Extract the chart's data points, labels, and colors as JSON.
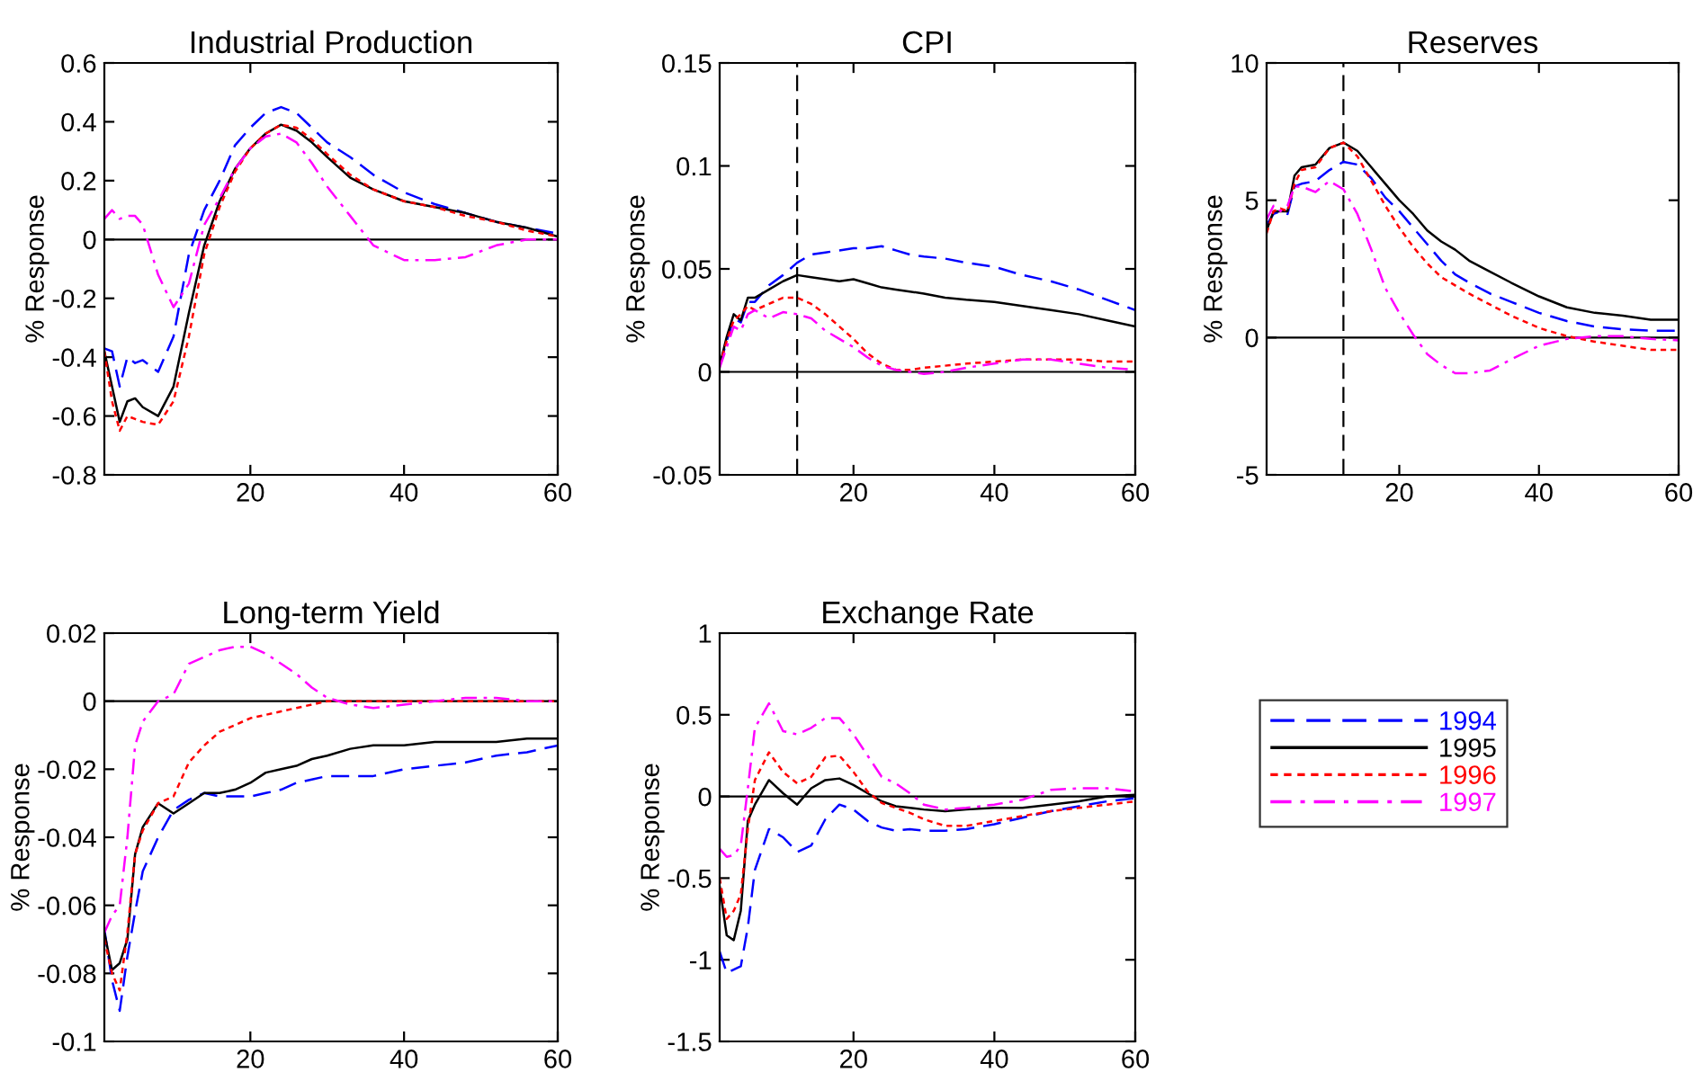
{
  "chart_data": [
    {
      "type": "line",
      "title": "Industrial Production",
      "ylabel": "% Response",
      "x": [
        1,
        2,
        3,
        4,
        5,
        6,
        8,
        10,
        12,
        14,
        16,
        18,
        20,
        22,
        24,
        26,
        28,
        30,
        33,
        36,
        40,
        44,
        48,
        52,
        56,
        60
      ],
      "xlim": [
        1,
        60
      ],
      "xticks": [
        20,
        40,
        60
      ],
      "ylim": [
        -0.8,
        0.6
      ],
      "yticks": [
        -0.8,
        -0.6,
        -0.4,
        -0.2,
        0,
        0.2,
        0.4,
        0.6
      ],
      "grid": false,
      "legend": false,
      "ref_lines": [
        {
          "axis": "y",
          "value": 0,
          "color": "#000000",
          "line_style": "solid"
        }
      ],
      "series": [
        {
          "color": "#0000ff",
          "line_style": "dashed",
          "values": [
            -0.37,
            -0.38,
            -0.5,
            -0.4,
            -0.42,
            -0.41,
            -0.45,
            -0.33,
            -0.05,
            0.1,
            0.2,
            0.32,
            0.38,
            0.43,
            0.45,
            0.43,
            0.38,
            0.33,
            0.28,
            0.22,
            0.16,
            0.12,
            0.09,
            0.06,
            0.04,
            0.02
          ]
        },
        {
          "color": "#000000",
          "line_style": "solid",
          "values": [
            -0.38,
            -0.5,
            -0.62,
            -0.55,
            -0.54,
            -0.57,
            -0.6,
            -0.5,
            -0.25,
            -0.02,
            0.13,
            0.24,
            0.31,
            0.36,
            0.39,
            0.37,
            0.33,
            0.28,
            0.21,
            0.17,
            0.13,
            0.11,
            0.09,
            0.06,
            0.04,
            0.01
          ]
        },
        {
          "color": "#ff0000",
          "line_style": "dotted",
          "values": [
            -0.38,
            -0.55,
            -0.65,
            -0.6,
            -0.61,
            -0.62,
            -0.63,
            -0.55,
            -0.33,
            -0.05,
            0.11,
            0.23,
            0.31,
            0.36,
            0.39,
            0.38,
            0.34,
            0.29,
            0.22,
            0.17,
            0.13,
            0.11,
            0.08,
            0.06,
            0.03,
            0.01
          ]
        },
        {
          "color": "#ff00ff",
          "line_style": "dashdot",
          "values": [
            0.07,
            0.1,
            0.07,
            0.08,
            0.08,
            0.05,
            -0.12,
            -0.23,
            -0.15,
            0.05,
            0.14,
            0.24,
            0.31,
            0.35,
            0.36,
            0.33,
            0.26,
            0.18,
            0.08,
            -0.02,
            -0.07,
            -0.07,
            -0.06,
            -0.02,
            0,
            0
          ]
        }
      ]
    },
    {
      "type": "line",
      "title": "CPI",
      "ylabel": "% Response",
      "x": [
        1,
        2,
        3,
        4,
        5,
        6,
        8,
        10,
        12,
        14,
        16,
        18,
        20,
        22,
        24,
        26,
        28,
        30,
        33,
        36,
        40,
        44,
        48,
        52,
        56,
        60
      ],
      "xlim": [
        1,
        60
      ],
      "xticks": [
        20,
        40,
        60
      ],
      "ylim": [
        -0.05,
        0.15
      ],
      "yticks": [
        -0.05,
        0,
        0.05,
        0.1,
        0.15
      ],
      "grid": false,
      "legend": false,
      "ref_lines": [
        {
          "axis": "y",
          "value": 0,
          "color": "#000000",
          "line_style": "solid"
        },
        {
          "axis": "x",
          "value": 12,
          "color": "#000000",
          "line_style": "dashed"
        }
      ],
      "series": [
        {
          "color": "#0000ff",
          "line_style": "dashed",
          "values": [
            0.003,
            0.015,
            0.026,
            0.024,
            0.034,
            0.034,
            0.042,
            0.047,
            0.053,
            0.057,
            0.058,
            0.059,
            0.06,
            0.06,
            0.061,
            0.059,
            0.057,
            0.056,
            0.055,
            0.053,
            0.051,
            0.047,
            0.044,
            0.04,
            0.035,
            0.03
          ]
        },
        {
          "color": "#000000",
          "line_style": "solid",
          "values": [
            0.003,
            0.017,
            0.028,
            0.025,
            0.036,
            0.036,
            0.04,
            0.044,
            0.047,
            0.046,
            0.045,
            0.044,
            0.045,
            0.043,
            0.041,
            0.04,
            0.039,
            0.038,
            0.036,
            0.035,
            0.034,
            0.032,
            0.03,
            0.028,
            0.025,
            0.022
          ]
        },
        {
          "color": "#ff0000",
          "line_style": "dotted",
          "values": [
            0.003,
            0.015,
            0.025,
            0.028,
            0.032,
            0.03,
            0.033,
            0.036,
            0.036,
            0.033,
            0.028,
            0.022,
            0.016,
            0.009,
            0.004,
            0.001,
            0.001,
            0.002,
            0.003,
            0.004,
            0.005,
            0.006,
            0.006,
            0.006,
            0.005,
            0.005
          ]
        },
        {
          "color": "#ff00ff",
          "line_style": "dashdot",
          "values": [
            0.002,
            0.012,
            0.022,
            0.02,
            0.028,
            0.03,
            0.026,
            0.029,
            0.028,
            0.026,
            0.02,
            0.016,
            0.012,
            0.007,
            0.003,
            0.001,
            0,
            -0.001,
            0,
            0.002,
            0.004,
            0.006,
            0.006,
            0.004,
            0.002,
            0.001
          ]
        }
      ]
    },
    {
      "type": "line",
      "title": "Reserves",
      "ylabel": "% Response",
      "x": [
        1,
        2,
        3,
        4,
        5,
        6,
        8,
        10,
        12,
        14,
        16,
        18,
        20,
        22,
        24,
        26,
        28,
        30,
        33,
        36,
        40,
        44,
        48,
        52,
        56,
        60
      ],
      "xlim": [
        1,
        60
      ],
      "xticks": [
        20,
        40,
        60
      ],
      "ylim": [
        -5,
        10
      ],
      "yticks": [
        -5,
        0,
        5,
        10
      ],
      "grid": false,
      "legend": false,
      "ref_lines": [
        {
          "axis": "y",
          "value": 0,
          "color": "#000000",
          "line_style": "solid"
        },
        {
          "axis": "x",
          "value": 12,
          "color": "#000000",
          "line_style": "dashed"
        }
      ],
      "series": [
        {
          "color": "#0000ff",
          "line_style": "dashed",
          "values": [
            4.1,
            4.5,
            4.6,
            4.5,
            5.5,
            5.6,
            5.7,
            6.1,
            6.4,
            6.3,
            5.8,
            5.1,
            4.6,
            4.0,
            3.4,
            2.8,
            2.3,
            2.0,
            1.6,
            1.3,
            0.9,
            0.6,
            0.4,
            0.3,
            0.25,
            0.25
          ]
        },
        {
          "color": "#000000",
          "line_style": "solid",
          "values": [
            3.9,
            4.6,
            4.6,
            4.6,
            5.9,
            6.2,
            6.3,
            6.9,
            7.1,
            6.8,
            6.2,
            5.6,
            5.0,
            4.5,
            3.9,
            3.5,
            3.2,
            2.8,
            2.4,
            2.0,
            1.5,
            1.1,
            0.9,
            0.8,
            0.65,
            0.65
          ]
        },
        {
          "color": "#ff0000",
          "line_style": "dotted",
          "values": [
            3.8,
            4.6,
            4.7,
            4.6,
            5.6,
            6.1,
            6.2,
            6.9,
            7.1,
            6.6,
            5.7,
            4.8,
            4.0,
            3.3,
            2.7,
            2.2,
            1.9,
            1.6,
            1.2,
            0.8,
            0.35,
            0.05,
            -0.15,
            -0.3,
            -0.45,
            -0.45
          ]
        },
        {
          "color": "#ff00ff",
          "line_style": "dashdot",
          "values": [
            4.3,
            4.8,
            4.6,
            4.8,
            5.5,
            5.5,
            5.3,
            5.7,
            5.4,
            4.5,
            3.2,
            1.8,
            0.9,
            0.1,
            -0.6,
            -1.0,
            -1.3,
            -1.3,
            -1.2,
            -0.8,
            -0.3,
            -0.05,
            0.05,
            0.05,
            -0.05,
            -0.1
          ]
        }
      ]
    },
    {
      "type": "line",
      "title": "Long-term Yield",
      "ylabel": "% Response",
      "x": [
        1,
        2,
        3,
        4,
        5,
        6,
        8,
        10,
        12,
        14,
        16,
        18,
        20,
        22,
        24,
        26,
        28,
        30,
        33,
        36,
        40,
        44,
        48,
        52,
        56,
        60
      ],
      "xlim": [
        1,
        60
      ],
      "xticks": [
        20,
        40,
        60
      ],
      "ylim": [
        -0.1,
        0.02
      ],
      "yticks": [
        -0.1,
        -0.08,
        -0.06,
        -0.04,
        -0.02,
        0,
        0.02
      ],
      "grid": false,
      "legend": false,
      "ref_lines": [
        {
          "axis": "y",
          "value": 0,
          "color": "#000000",
          "line_style": "solid"
        }
      ],
      "series": [
        {
          "color": "#0000ff",
          "line_style": "dashed",
          "values": [
            -0.067,
            -0.082,
            -0.091,
            -0.075,
            -0.062,
            -0.05,
            -0.04,
            -0.032,
            -0.029,
            -0.027,
            -0.028,
            -0.028,
            -0.028,
            -0.027,
            -0.026,
            -0.024,
            -0.023,
            -0.022,
            -0.022,
            -0.022,
            -0.02,
            -0.019,
            -0.018,
            -0.016,
            -0.015,
            -0.013
          ]
        },
        {
          "color": "#000000",
          "line_style": "solid",
          "values": [
            -0.068,
            -0.079,
            -0.077,
            -0.07,
            -0.045,
            -0.037,
            -0.03,
            -0.033,
            -0.03,
            -0.027,
            -0.027,
            -0.026,
            -0.024,
            -0.021,
            -0.02,
            -0.019,
            -0.017,
            -0.016,
            -0.014,
            -0.013,
            -0.013,
            -0.012,
            -0.012,
            -0.012,
            -0.011,
            -0.011
          ]
        },
        {
          "color": "#ff0000",
          "line_style": "dotted",
          "values": [
            -0.07,
            -0.08,
            -0.085,
            -0.068,
            -0.045,
            -0.038,
            -0.03,
            -0.028,
            -0.018,
            -0.013,
            -0.009,
            -0.007,
            -0.005,
            -0.004,
            -0.003,
            -0.002,
            -0.001,
            0,
            0,
            0,
            0,
            0,
            0,
            0,
            0,
            0
          ]
        },
        {
          "color": "#ff00ff",
          "line_style": "dashdot",
          "values": [
            -0.068,
            -0.063,
            -0.06,
            -0.04,
            -0.013,
            -0.006,
            0,
            0.002,
            0.011,
            0.013,
            0.015,
            0.016,
            0.016,
            0.014,
            0.011,
            0.008,
            0.004,
            0.001,
            -0.001,
            -0.002,
            -0.001,
            0,
            0.001,
            0.001,
            0,
            0
          ]
        }
      ]
    },
    {
      "type": "line",
      "title": "Exchange Rate",
      "ylabel": "% Response",
      "x": [
        1,
        2,
        3,
        4,
        5,
        6,
        8,
        10,
        12,
        14,
        16,
        18,
        20,
        22,
        24,
        26,
        28,
        30,
        33,
        36,
        40,
        44,
        48,
        52,
        56,
        60
      ],
      "xlim": [
        1,
        60
      ],
      "xticks": [
        20,
        40,
        60
      ],
      "ylim": [
        -1.5,
        1
      ],
      "yticks": [
        -1.5,
        -1,
        -0.5,
        0,
        0.5,
        1
      ],
      "grid": false,
      "legend": "right",
      "ref_lines": [
        {
          "axis": "y",
          "value": 0,
          "color": "#000000",
          "line_style": "solid"
        }
      ],
      "series": [
        {
          "name": "1994",
          "color": "#0000ff",
          "line_style": "dashed",
          "values": [
            -0.95,
            -1.08,
            -1.06,
            -1.04,
            -0.8,
            -0.45,
            -0.2,
            -0.25,
            -0.34,
            -0.3,
            -0.14,
            -0.05,
            -0.08,
            -0.15,
            -0.19,
            -0.21,
            -0.2,
            -0.21,
            -0.21,
            -0.2,
            -0.17,
            -0.13,
            -0.09,
            -0.06,
            -0.03,
            -0.01
          ]
        },
        {
          "name": "1995",
          "color": "#000000",
          "line_style": "solid",
          "values": [
            -0.55,
            -0.85,
            -0.88,
            -0.7,
            -0.15,
            -0.05,
            0.1,
            0.02,
            -0.05,
            0.05,
            0.1,
            0.11,
            0.07,
            0.02,
            -0.03,
            -0.06,
            -0.07,
            -0.08,
            -0.09,
            -0.08,
            -0.07,
            -0.07,
            -0.05,
            -0.03,
            0,
            0.01
          ]
        },
        {
          "name": "1996",
          "color": "#ff0000",
          "line_style": "dotted",
          "values": [
            -0.5,
            -0.75,
            -0.7,
            -0.6,
            -0.2,
            0.1,
            0.27,
            0.15,
            0.08,
            0.12,
            0.24,
            0.25,
            0.15,
            0.03,
            -0.04,
            -0.07,
            -0.1,
            -0.14,
            -0.18,
            -0.18,
            -0.15,
            -0.12,
            -0.09,
            -0.07,
            -0.05,
            -0.03
          ]
        },
        {
          "name": "1997",
          "color": "#ff00ff",
          "line_style": "dashdot",
          "values": [
            -0.32,
            -0.37,
            -0.36,
            -0.3,
            0.05,
            0.42,
            0.57,
            0.4,
            0.38,
            0.42,
            0.48,
            0.48,
            0.38,
            0.25,
            0.12,
            0.08,
            0.02,
            -0.05,
            -0.08,
            -0.07,
            -0.05,
            -0.02,
            0.04,
            0.05,
            0.05,
            0.03
          ]
        }
      ]
    }
  ]
}
